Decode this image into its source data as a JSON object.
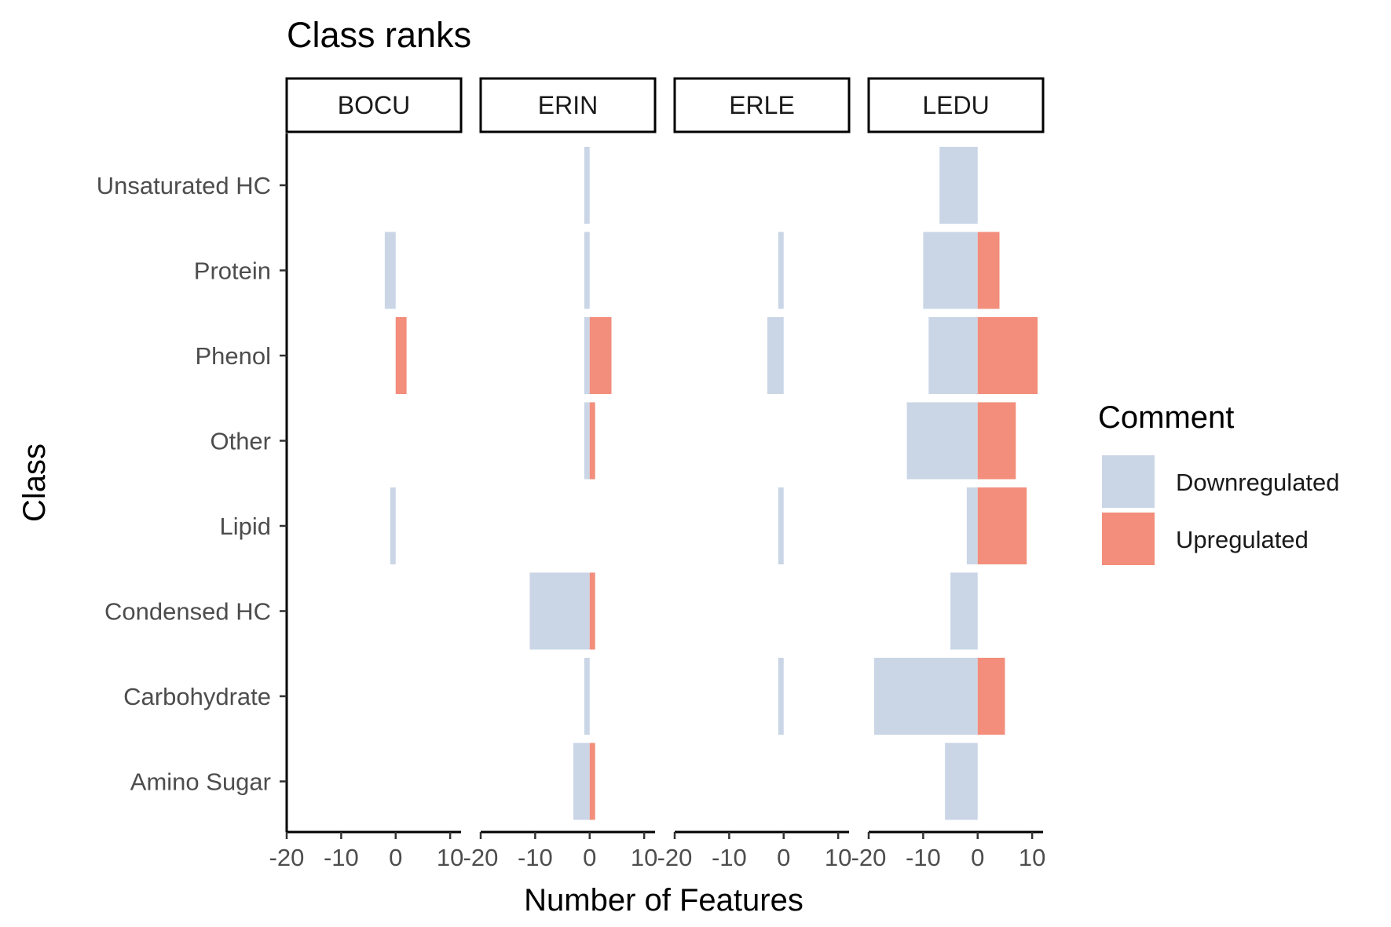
{
  "chart_data": {
    "type": "bar",
    "orientation": "horizontal",
    "title": "Class ranks",
    "xlabel": "Number of Features",
    "ylabel": "Class",
    "xlim": [
      -20,
      12
    ],
    "xticks": [
      -20,
      -10,
      0,
      10
    ],
    "xtick_labels": [
      "-20",
      "-10",
      "0",
      "10"
    ],
    "grid": false,
    "legend_position": "right",
    "legend_title": "Comment",
    "legend": [
      {
        "name": "Downregulated",
        "color": "#CAD6E6"
      },
      {
        "name": "Upregulated",
        "color": "#F28E7B"
      }
    ],
    "categories": [
      "Unsaturated HC",
      "Protein",
      "Phenol",
      "Other",
      "Lipid",
      "Condensed HC",
      "Carbohydrate",
      "Amino Sugar"
    ],
    "facets": [
      {
        "name": "BOCU",
        "series": [
          {
            "name": "Downregulated",
            "values": [
              0,
              -2,
              0,
              0,
              -1,
              0,
              0,
              0
            ]
          },
          {
            "name": "Upregulated",
            "values": [
              0,
              0,
              2,
              0,
              0,
              0,
              0,
              0
            ]
          }
        ]
      },
      {
        "name": "ERIN",
        "series": [
          {
            "name": "Downregulated",
            "values": [
              -1,
              -1,
              -1,
              -1,
              0,
              -11,
              -1,
              -3
            ]
          },
          {
            "name": "Upregulated",
            "values": [
              0,
              0,
              4,
              1,
              0,
              1,
              0,
              1
            ]
          }
        ]
      },
      {
        "name": "ERLE",
        "series": [
          {
            "name": "Downregulated",
            "values": [
              0,
              -1,
              -3,
              0,
              -1,
              0,
              -1,
              0
            ]
          },
          {
            "name": "Upregulated",
            "values": [
              0,
              0,
              0,
              0,
              0,
              0,
              0,
              0
            ]
          }
        ]
      },
      {
        "name": "LEDU",
        "series": [
          {
            "name": "Downregulated",
            "values": [
              -7,
              -10,
              -9,
              -13,
              -2,
              -5,
              -19,
              -6
            ]
          },
          {
            "name": "Upregulated",
            "values": [
              0,
              4,
              11,
              7,
              9,
              0,
              5,
              0
            ]
          }
        ]
      }
    ]
  }
}
